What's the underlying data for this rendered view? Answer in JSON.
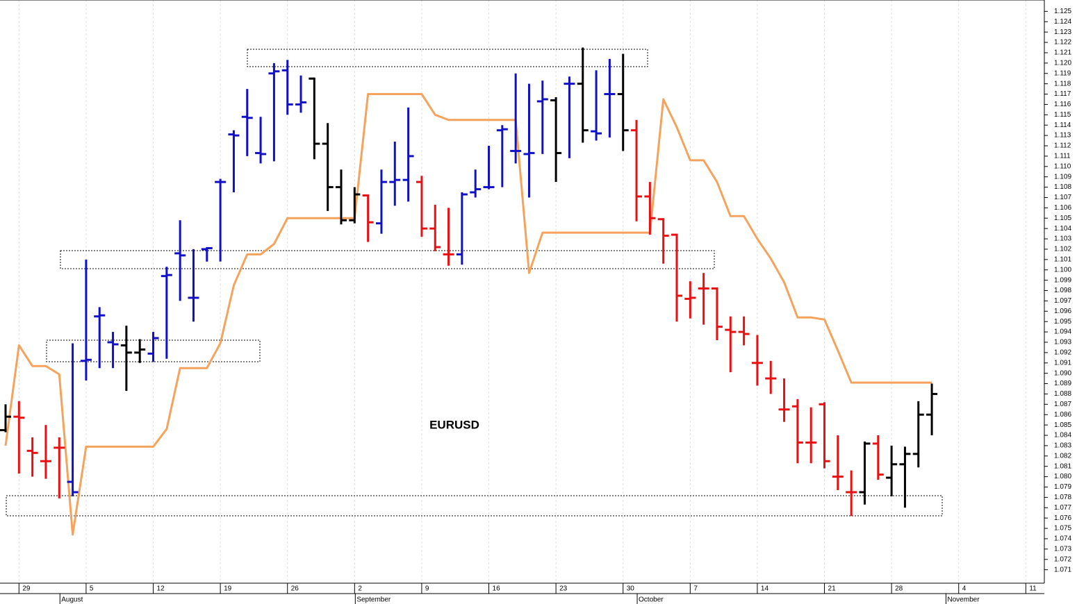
{
  "chart_data": {
    "type": "ohlc",
    "title": "EURUSD",
    "categories": [
      null,
      "29",
      null,
      null,
      null,
      null,
      "5",
      null,
      null,
      null,
      null,
      "12",
      null,
      null,
      null,
      null,
      "19",
      null,
      null,
      null,
      null,
      "26",
      null,
      null,
      null,
      null,
      "2",
      null,
      null,
      null,
      null,
      "9",
      null,
      null,
      null,
      null,
      "16",
      null,
      null,
      null,
      null,
      "23",
      null,
      null,
      null,
      null,
      "30",
      null,
      null,
      null,
      null,
      "7",
      null,
      null,
      null,
      null,
      "14",
      null,
      null,
      null,
      null,
      "21",
      null,
      null,
      null,
      null,
      "28",
      null,
      null,
      null,
      null,
      "4",
      null,
      null,
      null,
      null,
      "11",
      null
    ],
    "month_labels": [
      {
        "value": 4,
        "label": "August"
      },
      {
        "value": 26,
        "label": "September"
      },
      {
        "value": 47,
        "label": "October"
      },
      {
        "value": 70,
        "label": "November"
      }
    ],
    "open": [
      1.0845,
      1.0858,
      1.0825,
      1.0815,
      1.0828,
      1.0795,
      1.0912,
      1.0955,
      1.093,
      1.0927,
      1.092,
      1.0919,
      1.0994,
      1.1016,
      1.0973,
      1.102,
      1.1085,
      1.1131,
      1.1148,
      1.1113,
      1.119,
      1.1193,
      1.116,
      1.1185,
      1.1122,
      1.108,
      1.1048,
      1.1072,
      1.1045,
      1.1085,
      1.1087,
      1.1085,
      1.104,
      1.1015,
      1.1015,
      1.1075,
      1.108,
      1.1135,
      1.1115,
      1.1112,
      1.1163,
      1.1164,
      1.118,
      1.118,
      1.1134,
      1.117,
      1.117,
      1.1135,
      1.1071,
      1.1049,
      1.1034,
      1.0972,
      1.0982,
      1.0982,
      1.0942,
      1.094,
      1.091,
      1.0895,
      1.0865,
      1.0868,
      1.0833,
      1.087,
      1.08,
      1.0785,
      1.0785,
      1.0832,
      1.0799,
      1.0812,
      1.0822,
      1.086,
      null,
      null,
      null,
      null,
      null,
      null,
      null,
      null
    ],
    "high": [
      1.087,
      1.0873,
      1.0838,
      1.085,
      1.0838,
      1.0929,
      1.101,
      1.0964,
      1.094,
      1.0946,
      1.0933,
      1.094,
      1.1003,
      1.1048,
      1.102,
      1.1022,
      1.1088,
      1.1135,
      1.1175,
      1.1148,
      1.12,
      1.1203,
      1.1188,
      1.1186,
      1.1142,
      1.1097,
      1.108,
      1.1073,
      1.1097,
      1.1124,
      1.1157,
      1.1091,
      1.1063,
      1.106,
      1.1075,
      1.1097,
      1.112,
      1.114,
      1.119,
      1.118,
      1.1183,
      1.1167,
      1.1187,
      1.1215,
      1.1193,
      1.1204,
      1.1209,
      1.1145,
      1.1085,
      1.105,
      1.1035,
      1.0989,
      1.0997,
      1.0983,
      1.0955,
      1.0955,
      1.0937,
      1.0912,
      1.0895,
      1.0875,
      1.0867,
      1.0872,
      1.084,
      1.0806,
      1.0834,
      1.084,
      1.083,
      1.0829,
      1.0873,
      1.089,
      null,
      null,
      null,
      null,
      null,
      null,
      null,
      null
    ],
    "low": [
      1.0843,
      1.0803,
      1.08,
      1.0798,
      1.0779,
      1.0781,
      1.0893,
      1.0905,
      1.0905,
      1.0883,
      1.091,
      1.0911,
      1.0914,
      1.097,
      1.095,
      1.1008,
      1.1008,
      1.1075,
      1.111,
      1.1103,
      1.1105,
      1.115,
      1.1152,
      1.1107,
      1.1057,
      1.1044,
      1.1045,
      1.1027,
      1.1035,
      1.1062,
      1.1066,
      1.1032,
      1.1018,
      1.1004,
      1.1005,
      1.107,
      1.1078,
      1.108,
      1.1103,
      1.107,
      1.1112,
      1.1085,
      1.1108,
      1.1123,
      1.1125,
      1.1128,
      1.1115,
      1.1047,
      1.1034,
      1.1006,
      1.095,
      1.0953,
      1.0947,
      1.0932,
      1.0901,
      1.0927,
      1.0888,
      1.088,
      1.0853,
      1.0813,
      1.0813,
      1.0808,
      1.0787,
      1.0762,
      1.0773,
      1.0797,
      1.0781,
      1.077,
      1.0809,
      1.084,
      null,
      null,
      null,
      null,
      null,
      null,
      null,
      null
    ],
    "close": [
      1.0858,
      1.0857,
      1.0823,
      1.0815,
      1.0828,
      1.0785,
      1.0913,
      1.0956,
      1.0928,
      1.092,
      1.0923,
      1.0934,
      1.0995,
      1.1014,
      1.0973,
      1.1021,
      1.1085,
      1.113,
      1.1147,
      1.1112,
      1.1192,
      1.116,
      1.1162,
      1.1122,
      1.108,
      1.1048,
      1.1073,
      1.1046,
      1.1085,
      1.1087,
      1.111,
      1.104,
      1.1022,
      1.1015,
      1.1073,
      1.1078,
      1.108,
      1.1136,
      1.1115,
      1.1113,
      1.1165,
      1.1113,
      1.118,
      1.1135,
      1.1132,
      1.117,
      1.1135,
      1.1071,
      1.105,
      1.1033,
      1.0975,
      1.0973,
      1.0982,
      1.0945,
      1.094,
      1.0938,
      1.091,
      1.0895,
      1.0865,
      1.0833,
      1.0833,
      1.0815,
      1.08,
      1.0785,
      1.0832,
      1.0802,
      1.0812,
      1.0822,
      1.086,
      1.088,
      null,
      null,
      null,
      null,
      null,
      null,
      null,
      null
    ],
    "bar_colors": [
      "#000000",
      "#e81010",
      "#e81010",
      "#e81010",
      "#e81010",
      "#1010c8",
      "#1010c8",
      "#1010c8",
      "#1010c8",
      "#000000",
      "#000000",
      "#1010c8",
      "#1010c8",
      "#1010c8",
      "#1010c8",
      "#1010c8",
      "#1010c8",
      "#1010c8",
      "#1010c8",
      "#1010c8",
      "#1010c8",
      "#1010c8",
      "#1010c8",
      "#000000",
      "#000000",
      "#000000",
      "#000000",
      "#e81010",
      "#1010c8",
      "#1010c8",
      "#1010c8",
      "#e81010",
      "#e81010",
      "#e81010",
      "#1010c8",
      "#1010c8",
      "#1010c8",
      "#1010c8",
      "#1010c8",
      "#1010c8",
      "#1010c8",
      "#000000",
      "#1010c8",
      "#000000",
      "#1010c8",
      "#1010c8",
      "#000000",
      "#e81010",
      "#e81010",
      "#e81010",
      "#e81010",
      "#e81010",
      "#e81010",
      "#e81010",
      "#e81010",
      "#e81010",
      "#e81010",
      "#e81010",
      "#e81010",
      "#e81010",
      "#e81010",
      "#e81010",
      "#e81010",
      "#e81010",
      "#000000",
      "#e81010",
      "#000000",
      "#000000",
      "#000000",
      "#000000",
      null,
      null,
      null,
      null,
      null,
      null,
      null,
      null
    ],
    "line": {
      "color": "#f5a35c",
      "values": [
        1.083,
        1.0927,
        1.0907,
        1.0907,
        1.0899,
        1.0744,
        1.0829,
        1.0829,
        1.0829,
        1.0829,
        1.0829,
        1.0829,
        1.0846,
        1.0905,
        1.0905,
        1.0905,
        1.0929,
        1.0985,
        1.1015,
        1.1015,
        1.1025,
        1.105,
        1.105,
        1.105,
        1.105,
        1.105,
        1.105,
        1.117,
        1.117,
        1.117,
        1.117,
        1.117,
        1.115,
        1.1145,
        1.1145,
        1.1145,
        1.1145,
        1.1145,
        1.1145,
        1.0997,
        1.1036,
        1.1036,
        1.1036,
        1.1036,
        1.1036,
        1.1036,
        1.1036,
        1.1036,
        1.1036,
        1.1165,
        1.1138,
        1.1106,
        1.1106,
        1.1085,
        1.1052,
        1.1052,
        1.103,
        1.1011,
        1.0988,
        1.0954,
        1.0954,
        1.0952,
        1.0922,
        1.0891,
        1.0891,
        1.0891,
        1.0891,
        1.0891,
        1.0891,
        1.0891,
        null,
        null,
        null,
        null,
        null,
        null,
        null,
        null
      ]
    },
    "ylim": [
      1.0697,
      1.1261
    ],
    "yticks": [
      1.071,
      1.072,
      1.073,
      1.074,
      1.075,
      1.076,
      1.077,
      1.078,
      1.079,
      {
        "value": 1.08,
        "label": "1.080"
      },
      1.081,
      1.082,
      1.083,
      1.084,
      1.085,
      1.086,
      1.087,
      1.088,
      1.089,
      {
        "value": 1.09,
        "label": "1.090"
      },
      1.091,
      1.092,
      1.093,
      1.094,
      1.095,
      1.096,
      1.097,
      1.098,
      1.099,
      {
        "value": 1.1,
        "label": "1.100"
      },
      1.101,
      1.102,
      1.103,
      1.104,
      1.105,
      1.106,
      1.107,
      1.108,
      1.109,
      {
        "value": 1.11,
        "label": "1.110"
      },
      1.111,
      1.112,
      1.113,
      1.114,
      1.115,
      1.116,
      1.117,
      1.118,
      1.119,
      {
        "value": 1.12,
        "label": "1.120"
      },
      1.121,
      1.122,
      1.123,
      1.124,
      1.125
    ],
    "grid": true
  }
}
